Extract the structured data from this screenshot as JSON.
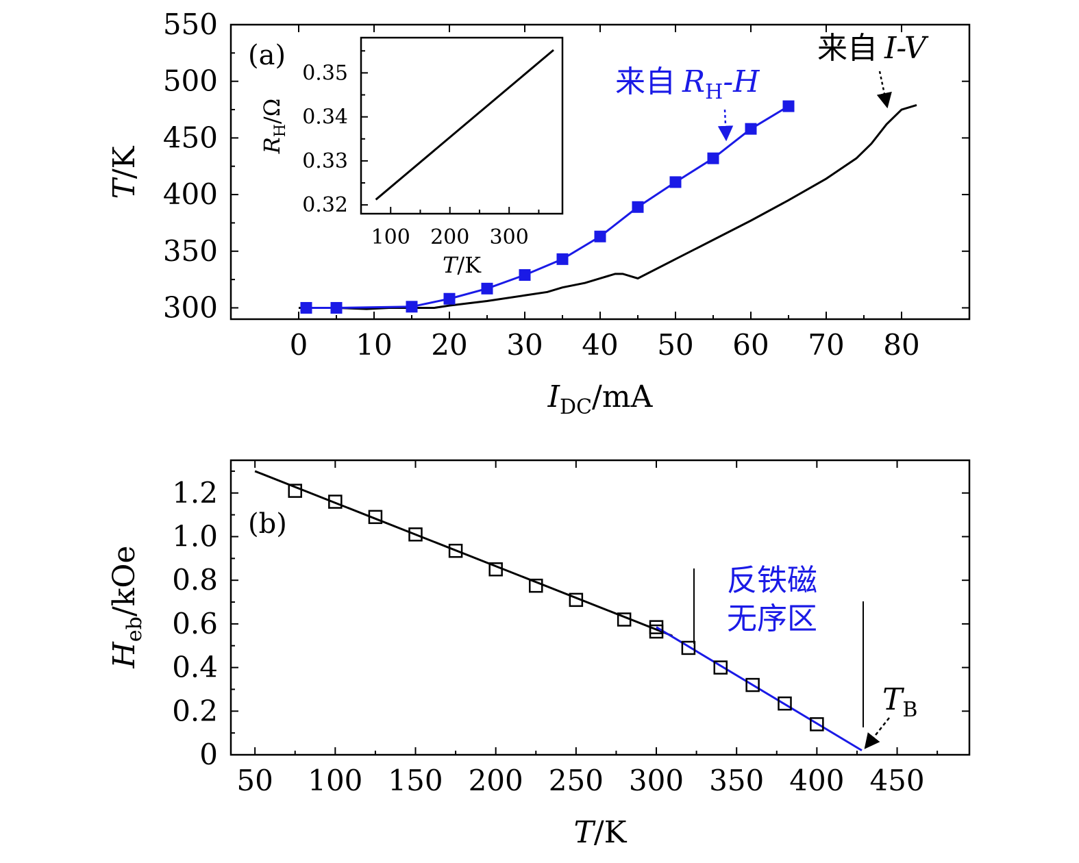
{
  "chart_data": [
    {
      "panel": "(a)",
      "type": "line",
      "xlabel": "I_DC/mA",
      "xlabel_main": "I",
      "xlabel_sub": "DC",
      "xlabel_unit": "/mA",
      "ylabel": "T/K",
      "ylabel_main": "T",
      "ylabel_unit": "/K",
      "xlim": [
        -9,
        89
      ],
      "ylim": [
        290,
        550
      ],
      "xticks": [
        0,
        10,
        20,
        30,
        40,
        50,
        60,
        70,
        80
      ],
      "yticks": [
        300,
        350,
        400,
        450,
        500,
        550
      ],
      "series": [
        {
          "name": "来自 R_H-H",
          "color": "#1a1ae6",
          "marker": "filled-square",
          "x": [
            1,
            5,
            15,
            20,
            25,
            30,
            35,
            40,
            45,
            50,
            55,
            60,
            65
          ],
          "y": [
            300,
            300,
            301,
            308,
            317,
            329,
            343,
            363,
            389,
            411,
            432,
            458,
            478
          ]
        },
        {
          "name": "来自 I-V",
          "color": "#000000",
          "marker": "none",
          "x": [
            0,
            5,
            9,
            12,
            15,
            18,
            20,
            25,
            30,
            33,
            35,
            38,
            40,
            42,
            43,
            45,
            50,
            55,
            60,
            65,
            70,
            74,
            76,
            78,
            80,
            82
          ],
          "y": [
            300,
            300,
            299,
            300,
            300,
            300,
            302,
            306,
            311,
            314,
            318,
            322,
            326,
            330,
            330,
            326,
            343,
            360,
            377,
            395,
            414,
            432,
            445,
            462,
            475,
            479
          ]
        }
      ],
      "annotations": {
        "rh_label": "来自",
        "rh_R": "R",
        "rh_sub": "H",
        "rh_H": "-H",
        "iv_label": "来自",
        "iv_var": "I-V"
      },
      "inset": {
        "type": "line",
        "xlabel_main": "T",
        "xlabel_unit": "/K",
        "ylabel_main": "R",
        "ylabel_sub": "H",
        "ylabel_unit": "/Ω",
        "xlim": [
          50,
          390
        ],
        "ylim": [
          0.318,
          0.358
        ],
        "xticks": [
          100,
          200,
          300
        ],
        "yticks": [
          0.32,
          0.33,
          0.34,
          0.35
        ],
        "ytick_labels": [
          "0.32",
          "0.33",
          "0.34",
          "0.35"
        ],
        "x": [
          75,
          375
        ],
        "y": [
          0.3212,
          0.3552
        ]
      }
    },
    {
      "panel": "(b)",
      "type": "scatter",
      "xlabel": "T/K",
      "xlabel_main": "T",
      "xlabel_unit": "/K",
      "ylabel": "H_eb/kOe",
      "ylabel_main": "H",
      "ylabel_sub": "eb",
      "ylabel_unit": "/kOe",
      "xlim": [
        35,
        495
      ],
      "ylim": [
        0,
        1.35
      ],
      "xticks": [
        50,
        100,
        150,
        200,
        250,
        300,
        350,
        400,
        450
      ],
      "yticks": [
        0,
        0.2,
        0.4,
        0.6,
        0.8,
        1.0,
        1.2
      ],
      "ytick_labels": [
        "0",
        "0.2",
        "0.4",
        "0.6",
        "0.8",
        "1.0",
        "1.2"
      ],
      "points": {
        "marker": "open-square",
        "x": [
          75,
          100,
          125,
          150,
          175,
          200,
          225,
          250,
          280,
          300,
          300,
          320,
          340,
          360,
          380,
          400
        ],
        "y": [
          1.21,
          1.16,
          1.09,
          1.01,
          0.935,
          0.85,
          0.775,
          0.71,
          0.62,
          0.585,
          0.565,
          0.49,
          0.4,
          0.32,
          0.235,
          0.14
        ]
      },
      "fit_lines": [
        {
          "name": "linear-fit-black",
          "color": "#000000",
          "x": [
            50,
            310
          ],
          "y": [
            1.3,
            0.545
          ]
        },
        {
          "name": "linear-fit-blue",
          "color": "#1a1ae6",
          "x": [
            300,
            428
          ],
          "y": [
            0.585,
            0.02
          ]
        }
      ],
      "annotations": {
        "region_line1": "反铁磁",
        "region_line2": "无序区",
        "tb_main": "T",
        "tb_sub": "B",
        "tb_x": 428
      }
    }
  ]
}
